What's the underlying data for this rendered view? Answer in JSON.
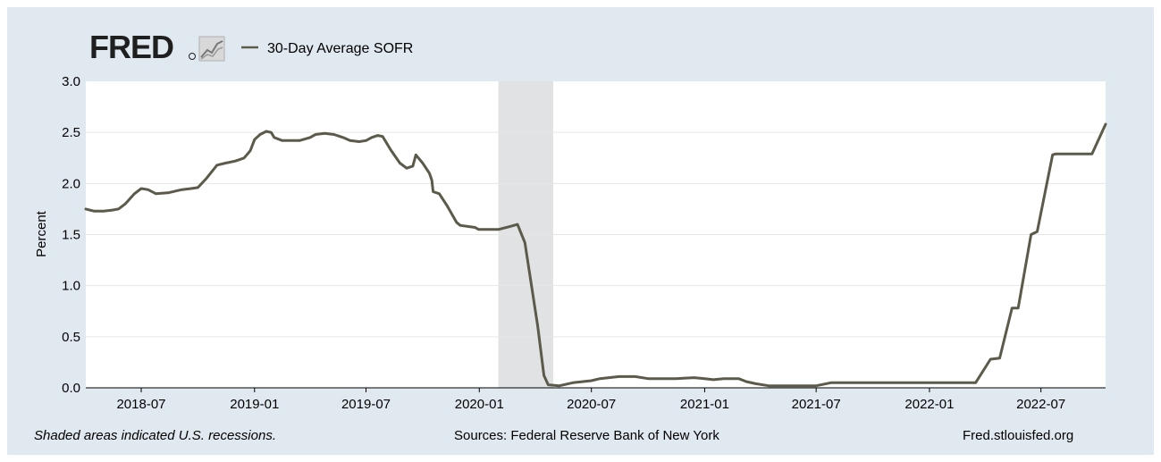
{
  "header": {
    "logo_text": "FRED",
    "legend_label": "30-Day Average SOFR"
  },
  "footer": {
    "note": "Shaded areas indicated U.S. recessions.",
    "source": "Sources: Federal Reserve Bank of New York",
    "site": "Fred.stlouisfed.org"
  },
  "colors": {
    "line": "#5c5a4a",
    "background": "#e1e9f0",
    "plot_area": "#ffffff",
    "recession": "#e1e2e4",
    "grid": "#e6e6e6"
  },
  "chart_data": {
    "type": "line",
    "ylabel": "Percent",
    "xlabel": "",
    "ylim": [
      0,
      3.0
    ],
    "xlim": [
      "2018-04-02",
      "2022-10-14"
    ],
    "y_ticks": [
      "0.0",
      "0.5",
      "1.0",
      "1.5",
      "2.0",
      "2.5",
      "3.0"
    ],
    "x_ticks": [
      "2018-07",
      "2019-01",
      "2019-07",
      "2020-01",
      "2020-07",
      "2021-01",
      "2021-07",
      "2022-01",
      "2022-07"
    ],
    "grid": true,
    "legend": "top-left",
    "recessions": [
      {
        "start": "2020-02-01",
        "end": "2020-04-30"
      }
    ],
    "series": [
      {
        "name": "30-Day Average SOFR",
        "points": [
          [
            "2018-04-02",
            1.75
          ],
          [
            "2018-04-15",
            1.73
          ],
          [
            "2018-05-01",
            1.73
          ],
          [
            "2018-05-15",
            1.74
          ],
          [
            "2018-05-25",
            1.75
          ],
          [
            "2018-06-05",
            1.8
          ],
          [
            "2018-06-20",
            1.9
          ],
          [
            "2018-07-01",
            1.95
          ],
          [
            "2018-07-12",
            1.94
          ],
          [
            "2018-07-25",
            1.9
          ],
          [
            "2018-08-15",
            1.91
          ],
          [
            "2018-09-05",
            1.94
          ],
          [
            "2018-09-20",
            1.95
          ],
          [
            "2018-10-01",
            1.96
          ],
          [
            "2018-10-15",
            2.05
          ],
          [
            "2018-11-01",
            2.18
          ],
          [
            "2018-11-15",
            2.2
          ],
          [
            "2018-12-01",
            2.22
          ],
          [
            "2018-12-15",
            2.25
          ],
          [
            "2018-12-25",
            2.32
          ],
          [
            "2019-01-01",
            2.43
          ],
          [
            "2019-01-10",
            2.48
          ],
          [
            "2019-01-20",
            2.51
          ],
          [
            "2019-01-28",
            2.5
          ],
          [
            "2019-02-02",
            2.45
          ],
          [
            "2019-02-15",
            2.42
          ],
          [
            "2019-03-01",
            2.42
          ],
          [
            "2019-03-15",
            2.42
          ],
          [
            "2019-04-01",
            2.45
          ],
          [
            "2019-04-10",
            2.48
          ],
          [
            "2019-04-25",
            2.49
          ],
          [
            "2019-05-10",
            2.48
          ],
          [
            "2019-05-25",
            2.45
          ],
          [
            "2019-06-05",
            2.42
          ],
          [
            "2019-06-20",
            2.41
          ],
          [
            "2019-07-01",
            2.42
          ],
          [
            "2019-07-10",
            2.45
          ],
          [
            "2019-07-20",
            2.47
          ],
          [
            "2019-07-28",
            2.46
          ],
          [
            "2019-08-10",
            2.33
          ],
          [
            "2019-08-25",
            2.2
          ],
          [
            "2019-09-05",
            2.15
          ],
          [
            "2019-09-15",
            2.17
          ],
          [
            "2019-09-20",
            2.28
          ],
          [
            "2019-10-01",
            2.2
          ],
          [
            "2019-10-12",
            2.1
          ],
          [
            "2019-10-16",
            2.03
          ],
          [
            "2019-10-18",
            1.92
          ],
          [
            "2019-10-28",
            1.9
          ],
          [
            "2019-11-10",
            1.78
          ],
          [
            "2019-11-25",
            1.62
          ],
          [
            "2019-12-01",
            1.59
          ],
          [
            "2019-12-25",
            1.57
          ],
          [
            "2019-12-31",
            1.55
          ],
          [
            "2020-01-15",
            1.55
          ],
          [
            "2020-02-01",
            1.55
          ],
          [
            "2020-02-20",
            1.58
          ],
          [
            "2020-03-03",
            1.6
          ],
          [
            "2020-03-15",
            1.42
          ],
          [
            "2020-04-05",
            0.6
          ],
          [
            "2020-04-15",
            0.12
          ],
          [
            "2020-04-22",
            0.03
          ],
          [
            "2020-05-10",
            0.02
          ],
          [
            "2020-06-01",
            0.05
          ],
          [
            "2020-07-01",
            0.07
          ],
          [
            "2020-07-15",
            0.09
          ],
          [
            "2020-08-15",
            0.11
          ],
          [
            "2020-09-10",
            0.11
          ],
          [
            "2020-10-01",
            0.09
          ],
          [
            "2020-11-01",
            0.09
          ],
          [
            "2020-11-15",
            0.09
          ],
          [
            "2020-12-15",
            0.1
          ],
          [
            "2021-01-01",
            0.09
          ],
          [
            "2021-01-15",
            0.08
          ],
          [
            "2021-02-01",
            0.09
          ],
          [
            "2021-02-25",
            0.09
          ],
          [
            "2021-03-10",
            0.06
          ],
          [
            "2021-03-25",
            0.04
          ],
          [
            "2021-04-15",
            0.02
          ],
          [
            "2021-07-01",
            0.02
          ],
          [
            "2021-07-25",
            0.05
          ],
          [
            "2022-03-17",
            0.05
          ],
          [
            "2022-04-10",
            0.28
          ],
          [
            "2022-04-25",
            0.29
          ],
          [
            "2022-05-15",
            0.78
          ],
          [
            "2022-05-25",
            0.78
          ],
          [
            "2022-06-15",
            1.5
          ],
          [
            "2022-06-25",
            1.53
          ],
          [
            "2022-07-20",
            2.28
          ],
          [
            "2022-07-25",
            2.29
          ],
          [
            "2022-08-15",
            2.29
          ],
          [
            "2022-09-22",
            2.29
          ],
          [
            "2022-10-14",
            2.58
          ]
        ]
      }
    ]
  }
}
